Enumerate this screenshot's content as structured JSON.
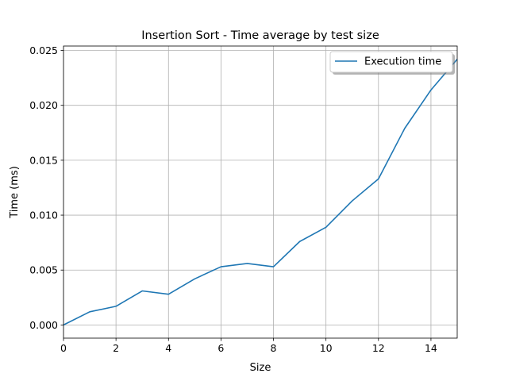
{
  "chart_data": {
    "type": "line",
    "title": "Insertion Sort - Time average by test size",
    "xlabel": "Size",
    "ylabel": "Time (ms)",
    "xlim": [
      0,
      15
    ],
    "ylim": [
      -0.0012,
      0.0254
    ],
    "xticks": [
      0,
      2,
      4,
      6,
      8,
      10,
      12,
      14
    ],
    "xtick_labels": [
      "0",
      "2",
      "4",
      "6",
      "8",
      "10",
      "12",
      "14"
    ],
    "yticks": [
      0.0,
      0.005,
      0.01,
      0.015,
      0.02,
      0.025
    ],
    "ytick_labels": [
      "0.000",
      "0.005",
      "0.010",
      "0.015",
      "0.020",
      "0.025"
    ],
    "grid": true,
    "legend_position": "top-right",
    "series": [
      {
        "name": "Execution time",
        "color": "#1f77b4",
        "x": [
          0,
          1,
          2,
          3,
          4,
          5,
          6,
          7,
          8,
          9,
          10,
          11,
          12,
          13,
          14,
          15
        ],
        "values": [
          0.0,
          0.0012,
          0.0017,
          0.0031,
          0.0028,
          0.0042,
          0.0053,
          0.0056,
          0.0053,
          0.0076,
          0.0089,
          0.0113,
          0.0133,
          0.0179,
          0.0214,
          0.0242
        ]
      }
    ]
  }
}
